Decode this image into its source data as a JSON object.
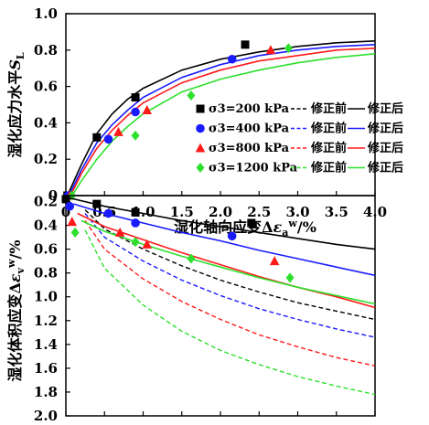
{
  "chart_data": [
    {
      "type": "scatter",
      "ylabel": "湿化应力水平SL",
      "xlabel": "湿化轴向应变Δεaw/%",
      "xlim": [
        0,
        4.0
      ],
      "ylim": [
        0,
        1.0
      ],
      "x_ticks": [
        "0",
        "0.5",
        "1.0",
        "1.5",
        "2.0",
        "2.5",
        "3.0",
        "3.5",
        "4.0"
      ],
      "y_ticks": [
        "0",
        "0.2",
        "0.4",
        "0.6",
        "0.8",
        "1.0"
      ],
      "legend": {
        "placement": "bottom-right",
        "corrected_before": "修正前",
        "corrected_after": "修正后"
      },
      "series": [
        {
          "name": "σ3=200 kPa",
          "color": "#000000",
          "marker": "square",
          "points": [
            [
              0.02,
              0
            ],
            [
              0.4,
              0.32
            ],
            [
              0.9,
              0.54
            ],
            [
              2.32,
              0.83
            ]
          ],
          "curve_after": [
            [
              0.02,
              0
            ],
            [
              0.2,
              0.17
            ],
            [
              0.4,
              0.34
            ],
            [
              0.6,
              0.45
            ],
            [
              0.8,
              0.53
            ],
            [
              1.0,
              0.59
            ],
            [
              1.5,
              0.69
            ],
            [
              2.0,
              0.75
            ],
            [
              2.5,
              0.79
            ],
            [
              3.0,
              0.82
            ],
            [
              3.5,
              0.84
            ],
            [
              4.0,
              0.85
            ]
          ]
        },
        {
          "name": "σ3=400 kPa",
          "color": "#1a1aff",
          "marker": "circle",
          "points": [
            [
              0.03,
              0
            ],
            [
              0.55,
              0.31
            ],
            [
              0.9,
              0.46
            ],
            [
              2.15,
              0.75
            ]
          ],
          "curve_after": [
            [
              0.04,
              0
            ],
            [
              0.2,
              0.14
            ],
            [
              0.4,
              0.29
            ],
            [
              0.6,
              0.39
            ],
            [
              0.8,
              0.47
            ],
            [
              1.0,
              0.54
            ],
            [
              1.5,
              0.65
            ],
            [
              2.0,
              0.72
            ],
            [
              2.5,
              0.77
            ],
            [
              3.0,
              0.8
            ],
            [
              3.5,
              0.82
            ],
            [
              4.0,
              0.83
            ]
          ]
        },
        {
          "name": "σ3=800 kPa",
          "color": "#ff1a1a",
          "marker": "triangle",
          "points": [
            [
              0.05,
              0
            ],
            [
              0.68,
              0.35
            ],
            [
              1.05,
              0.47
            ],
            [
              2.65,
              0.8
            ]
          ],
          "curve_after": [
            [
              0.06,
              0
            ],
            [
              0.2,
              0.12
            ],
            [
              0.4,
              0.26
            ],
            [
              0.6,
              0.36
            ],
            [
              0.8,
              0.44
            ],
            [
              1.0,
              0.51
            ],
            [
              1.5,
              0.62
            ],
            [
              2.0,
              0.69
            ],
            [
              2.5,
              0.74
            ],
            [
              3.0,
              0.77
            ],
            [
              3.5,
              0.8
            ],
            [
              4.0,
              0.81
            ]
          ]
        },
        {
          "name": "σ3=1200 kPa",
          "color": "#2de02d",
          "marker": "diamond",
          "points": [
            [
              0.08,
              0
            ],
            [
              0.9,
              0.33
            ],
            [
              1.62,
              0.55
            ],
            [
              2.88,
              0.81
            ]
          ],
          "curve_after": [
            [
              0.08,
              0
            ],
            [
              0.2,
              0.08
            ],
            [
              0.4,
              0.2
            ],
            [
              0.6,
              0.3
            ],
            [
              0.8,
              0.38
            ],
            [
              1.0,
              0.45
            ],
            [
              1.5,
              0.57
            ],
            [
              2.0,
              0.64
            ],
            [
              2.5,
              0.69
            ],
            [
              3.0,
              0.73
            ],
            [
              3.5,
              0.76
            ],
            [
              4.0,
              0.78
            ]
          ]
        }
      ]
    },
    {
      "type": "scatter",
      "ylabel": "湿化体积应变Δεvw/%",
      "xlim": [
        0,
        4.0
      ],
      "ylim": [
        0.0,
        2.0
      ],
      "y_inverted": true,
      "y_ticks": [
        "0.2",
        "0.4",
        "0.6",
        "0.8",
        "1.0",
        "1.2",
        "1.4",
        "1.6",
        "1.8",
        "2.0"
      ],
      "series": [
        {
          "name": "σ3=200 kPa",
          "color": "#000000",
          "marker": "square",
          "points": [
            [
              0.0,
              0.18
            ],
            [
              0.4,
              0.22
            ],
            [
              0.9,
              0.29
            ],
            [
              2.4,
              0.38
            ]
          ],
          "curve_before": [
            [
              0.25,
              0.27
            ],
            [
              0.5,
              0.43
            ],
            [
              1.0,
              0.6
            ],
            [
              1.5,
              0.74
            ],
            [
              2.0,
              0.86
            ],
            [
              2.5,
              0.96
            ],
            [
              3.0,
              1.05
            ],
            [
              3.5,
              1.12
            ],
            [
              4.0,
              1.19
            ]
          ],
          "curve_after": [
            [
              0.05,
              0.17
            ],
            [
              0.5,
              0.24
            ],
            [
              1.0,
              0.3
            ],
            [
              1.5,
              0.36
            ],
            [
              2.0,
              0.41
            ],
            [
              2.5,
              0.46
            ],
            [
              3.0,
              0.51
            ],
            [
              3.5,
              0.56
            ],
            [
              4.0,
              0.6
            ]
          ]
        },
        {
          "name": "σ3=400 kPa",
          "color": "#1a1aff",
          "marker": "circle",
          "points": [
            [
              0.05,
              0.24
            ],
            [
              0.55,
              0.3
            ],
            [
              0.9,
              0.38
            ],
            [
              2.15,
              0.49
            ]
          ],
          "curve_before": [
            [
              0.25,
              0.3
            ],
            [
              0.5,
              0.5
            ],
            [
              1.0,
              0.7
            ],
            [
              1.5,
              0.86
            ],
            [
              2.0,
              0.99
            ],
            [
              2.5,
              1.1
            ],
            [
              3.0,
              1.19
            ],
            [
              3.5,
              1.27
            ],
            [
              4.0,
              1.34
            ]
          ],
          "curve_after": [
            [
              0.1,
              0.22
            ],
            [
              0.5,
              0.3
            ],
            [
              1.0,
              0.38
            ],
            [
              1.5,
              0.46
            ],
            [
              2.0,
              0.53
            ],
            [
              2.5,
              0.61
            ],
            [
              3.0,
              0.68
            ],
            [
              3.5,
              0.75
            ],
            [
              4.0,
              0.82
            ]
          ]
        },
        {
          "name": "σ3=800 kPa",
          "color": "#ff1a1a",
          "marker": "triangle",
          "points": [
            [
              0.08,
              0.37
            ],
            [
              0.7,
              0.46
            ],
            [
              1.05,
              0.56
            ],
            [
              2.7,
              0.7
            ]
          ],
          "curve_before": [
            [
              0.25,
              0.36
            ],
            [
              0.5,
              0.6
            ],
            [
              1.0,
              0.85
            ],
            [
              1.5,
              1.04
            ],
            [
              2.0,
              1.19
            ],
            [
              2.5,
              1.32
            ],
            [
              3.0,
              1.42
            ],
            [
              3.5,
              1.51
            ],
            [
              4.0,
              1.58
            ]
          ],
          "curve_after": [
            [
              0.15,
              0.3
            ],
            [
              0.5,
              0.41
            ],
            [
              1.0,
              0.52
            ],
            [
              1.5,
              0.63
            ],
            [
              2.0,
              0.73
            ],
            [
              2.5,
              0.83
            ],
            [
              3.0,
              0.92
            ],
            [
              3.5,
              1.0
            ],
            [
              4.0,
              1.09
            ]
          ]
        },
        {
          "name": "σ3=1200 kPa",
          "color": "#2de02d",
          "marker": "diamond",
          "points": [
            [
              0.12,
              0.46
            ],
            [
              0.9,
              0.54
            ],
            [
              1.62,
              0.68
            ],
            [
              2.9,
              0.84
            ]
          ],
          "curve_before": [
            [
              0.25,
              0.44
            ],
            [
              0.5,
              0.76
            ],
            [
              1.0,
              1.07
            ],
            [
              1.5,
              1.29
            ],
            [
              2.0,
              1.45
            ],
            [
              2.5,
              1.57
            ],
            [
              3.0,
              1.67
            ],
            [
              3.5,
              1.75
            ],
            [
              4.0,
              1.82
            ]
          ],
          "curve_after": [
            [
              0.2,
              0.36
            ],
            [
              0.5,
              0.45
            ],
            [
              1.0,
              0.56
            ],
            [
              1.5,
              0.66
            ],
            [
              2.0,
              0.75
            ],
            [
              2.5,
              0.84
            ],
            [
              3.0,
              0.92
            ],
            [
              3.5,
              0.99
            ],
            [
              4.0,
              1.06
            ]
          ]
        }
      ]
    }
  ]
}
